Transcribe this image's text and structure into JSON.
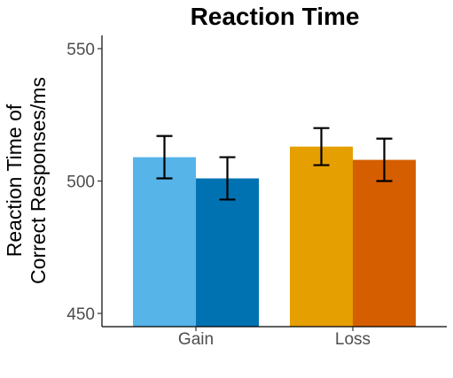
{
  "chart_data": {
    "type": "bar",
    "title": "Reaction Time",
    "ylabel_lines": [
      "Reaction Time of",
      "Correct Responses/ms"
    ],
    "xlabel": "",
    "categories": [
      "Gain",
      "Loss"
    ],
    "ylim": [
      445,
      555
    ],
    "yticks": [
      450,
      500,
      550
    ],
    "grid": false,
    "legend": "none",
    "bars": [
      {
        "category": "Gain",
        "value": 509,
        "error_low": 501,
        "error_high": 517,
        "color": "#56B4E9"
      },
      {
        "category": "Gain",
        "value": 501,
        "error_low": 493,
        "error_high": 509,
        "color": "#0072B2"
      },
      {
        "category": "Loss",
        "value": 513,
        "error_low": 506,
        "error_high": 520,
        "color": "#E69F00"
      },
      {
        "category": "Loss",
        "value": 508,
        "error_low": 500,
        "error_high": 516,
        "color": "#D55E00"
      }
    ]
  }
}
